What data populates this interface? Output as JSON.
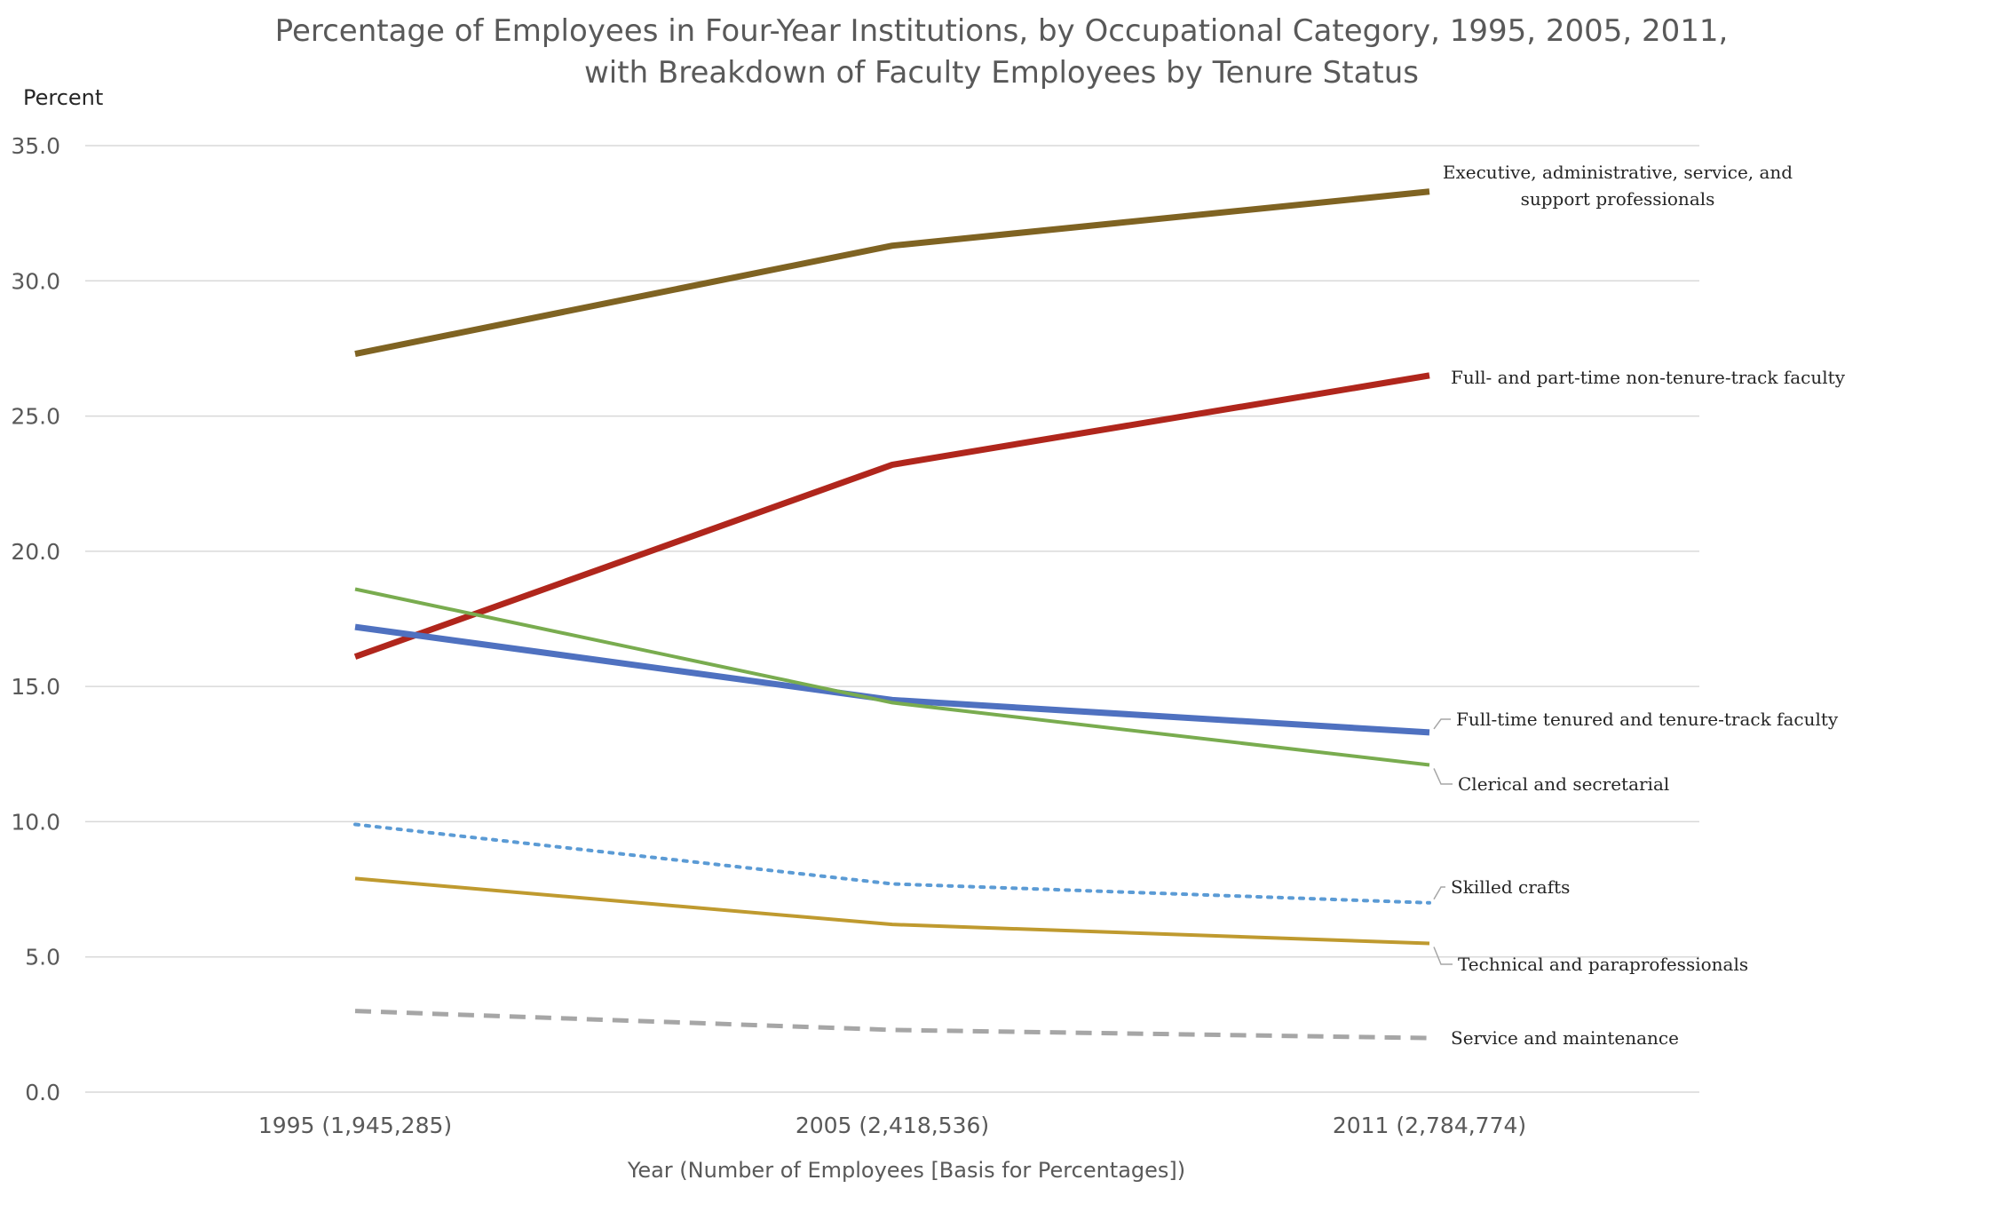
{
  "chart_data": {
    "type": "line",
    "title": [
      "Percentage of Employees in Four-Year Institutions, by Occupational Category, 1995, 2005, 2011,",
      "with Breakdown of Faculty Employees by Tenure Status"
    ],
    "ylabel": "Percent",
    "xlabel": "Year (Number of Employees [Basis for Percentages])",
    "categories": [
      "1995 (1,945,285)",
      "2005 (2,418,536)",
      "2011 (2,784,774)"
    ],
    "ylim": [
      0,
      35
    ],
    "yticks": [
      "0.0",
      "5.0",
      "10.0",
      "15.0",
      "20.0",
      "25.0",
      "30.0",
      "35.0"
    ],
    "grid": true,
    "legend": "labels at line ends (right)",
    "series": [
      {
        "name": "Executive, administrative, service, and support professionals",
        "label_lines": [
          "Executive, administrative, service, and",
          "support professionals"
        ],
        "values": [
          27.3,
          31.3,
          33.3
        ],
        "color": "#7f6322",
        "style": "solid-thick"
      },
      {
        "name": "Full- and part-time non-tenure-track faculty",
        "label_lines": [
          "Full- and part-time non-tenure-track faculty"
        ],
        "values": [
          16.1,
          23.2,
          26.5
        ],
        "color": "#b0261c",
        "style": "solid-thick"
      },
      {
        "name": "Full-time tenured and tenure-track faculty",
        "label_lines": [
          "Full-time tenured and tenure-track faculty"
        ],
        "values": [
          17.2,
          14.5,
          13.3
        ],
        "color": "#4f71c0",
        "style": "solid-thick"
      },
      {
        "name": "Clerical and secretarial",
        "label_lines": [
          "Clerical and secretarial"
        ],
        "values": [
          18.6,
          14.4,
          12.1
        ],
        "color": "#79ac4f",
        "style": "solid-thin"
      },
      {
        "name": "Skilled crafts",
        "label_lines": [
          "Skilled crafts"
        ],
        "values": [
          9.9,
          7.7,
          7.0
        ],
        "color": "#5b9bd5",
        "style": "dotted"
      },
      {
        "name": "Technical and paraprofessionals",
        "label_lines": [
          "Technical and paraprofessionals"
        ],
        "values": [
          7.9,
          6.2,
          5.5
        ],
        "color": "#bf9a2f",
        "style": "solid-thin"
      },
      {
        "name": "Service and maintenance",
        "label_lines": [
          "Service and maintenance"
        ],
        "values": [
          3.0,
          2.3,
          2.0
        ],
        "color": "#a6a6a6",
        "style": "dashed"
      }
    ]
  }
}
